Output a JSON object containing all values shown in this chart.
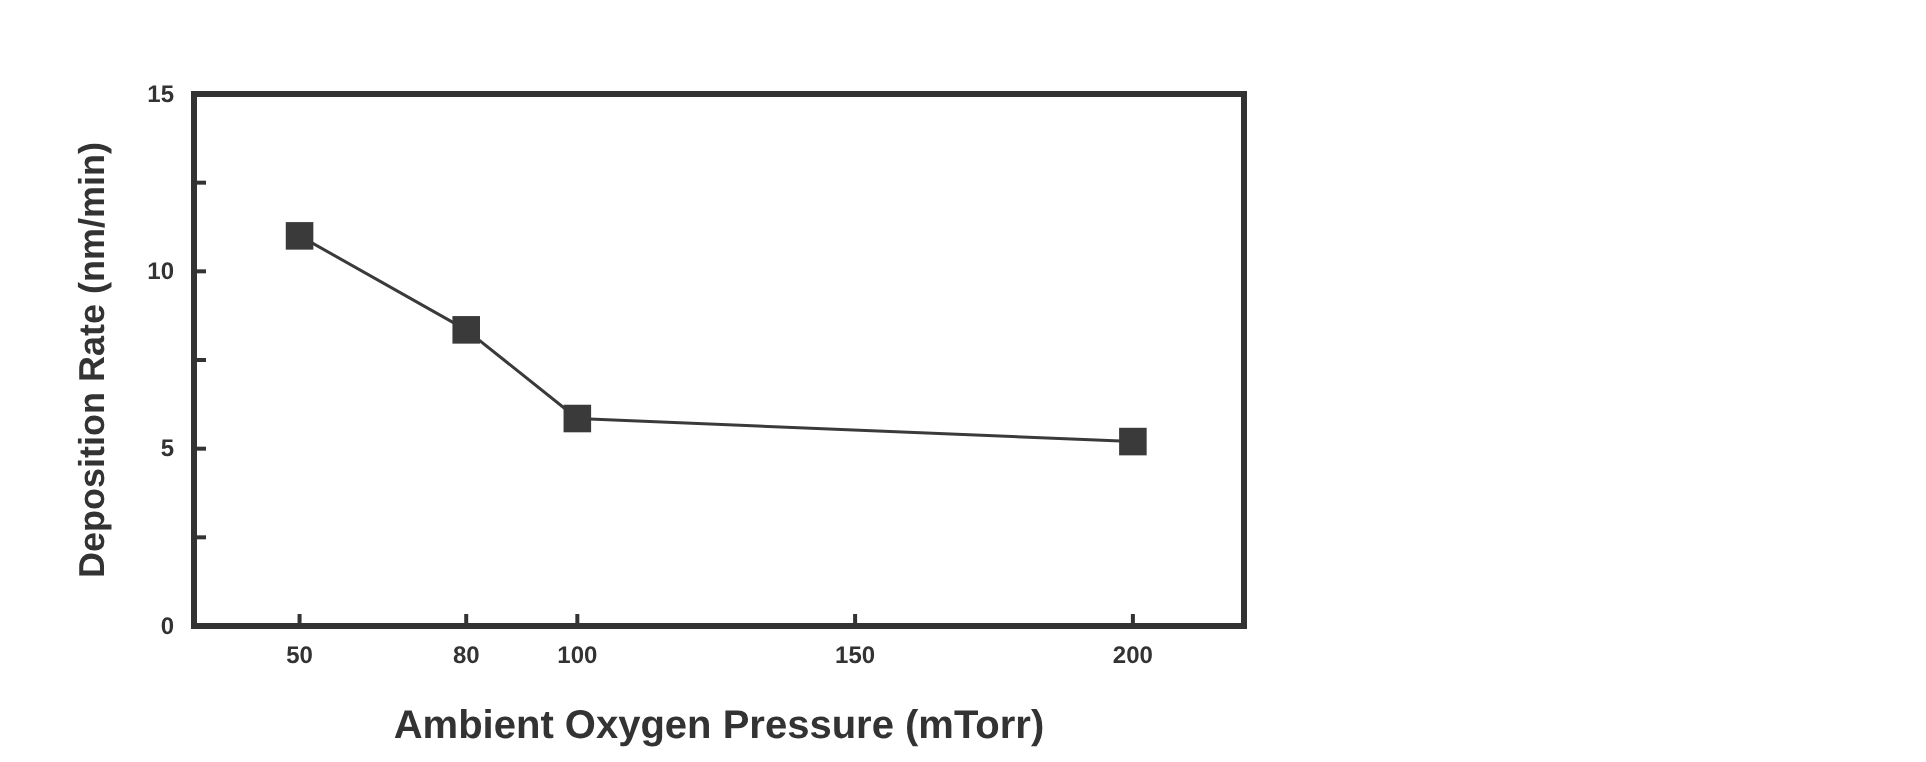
{
  "chart_data": {
    "type": "line",
    "xlabel": "Ambient Oxygen Pressure (mTorr)",
    "ylabel": "Deposition Rate (nm/min)",
    "x": [
      50,
      80,
      100,
      200
    ],
    "series": [
      {
        "color": "#3a3a3a",
        "values": [
          11.0,
          8.35,
          5.85,
          5.2
        ]
      }
    ],
    "xlim": [
      31,
      220
    ],
    "xticks": [
      50,
      80,
      100,
      150,
      200
    ],
    "ylim": [
      0,
      15
    ],
    "yticks": [
      0,
      {
        "value": 2.5,
        "label": null
      },
      5,
      {
        "value": 7.5,
        "label": null
      },
      10,
      {
        "value": 12.5,
        "label": null
      },
      15
    ],
    "marker": "square",
    "line_style": "solid",
    "grid": false
  }
}
